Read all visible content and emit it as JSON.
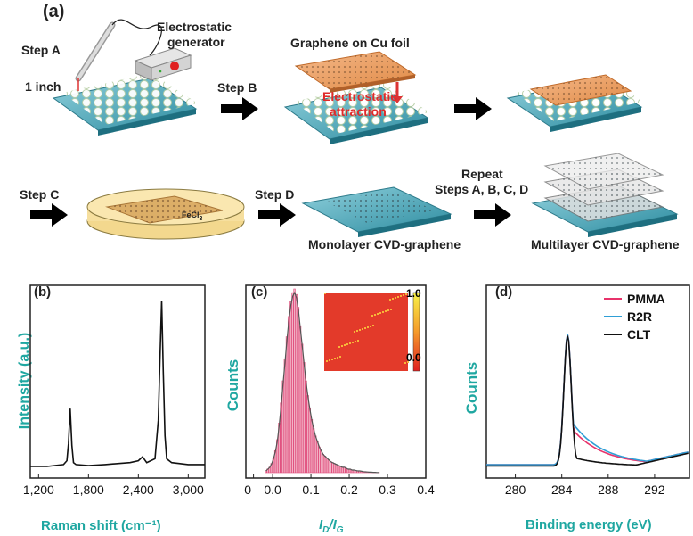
{
  "panel_a": {
    "label": "(a)",
    "step_a": "Step A",
    "step_b": "Step B",
    "step_c": "Step C",
    "step_d": "Step D",
    "generator": [
      "Electrostatic",
      "generator"
    ],
    "one_inch": "1 inch",
    "graphene_on_cu": "Graphene on Cu foil",
    "attraction": [
      "Electrostatic",
      "attraction"
    ],
    "fecl3": "FeCl",
    "fecl3_sub": "3",
    "repeat": [
      "Repeat",
      "Steps A, B, C, D"
    ],
    "monolayer": "Monolayer CVD-graphene",
    "multilayer": "Multilayer CVD-graphene"
  },
  "chart_data": [
    {
      "type": "line",
      "panel": "(b)",
      "xlabel": "Raman shift (cm⁻¹)",
      "ylabel": "Intensity (a.u.)",
      "xticks": [
        "1,200",
        "1,800",
        "2,400",
        "3,000"
      ],
      "xlim": [
        1100,
        3200
      ],
      "series": [
        {
          "values_x": [
            1100,
            1300,
            1500,
            1540,
            1560,
            1580,
            1600,
            1620,
            1650,
            1800,
            2000,
            2300,
            2400,
            2450,
            2500,
            2600,
            2640,
            2660,
            2680,
            2700,
            2720,
            2740,
            2800,
            3000,
            3200
          ],
          "values_y": [
            0.06,
            0.06,
            0.07,
            0.09,
            0.18,
            0.36,
            0.17,
            0.08,
            0.07,
            0.065,
            0.07,
            0.08,
            0.09,
            0.11,
            0.08,
            0.1,
            0.3,
            0.62,
            0.92,
            0.55,
            0.22,
            0.1,
            0.08,
            0.07,
            0.07
          ]
        }
      ]
    },
    {
      "type": "bar",
      "panel": "(c)",
      "xlabel_main": "I",
      "xlabel_sub1": "D",
      "xlabel_sep": "/",
      "xlabel_sub2": "G",
      "ylabel": "Counts",
      "xticks": [
        "0",
        "0.0",
        "0.1",
        "0.2",
        "0.3",
        "0.4"
      ],
      "xlim": [
        -0.07,
        0.4
      ],
      "colorbar": {
        "max": "1.0",
        "min": "0.0"
      },
      "bins_start": -0.02,
      "bin_width": 0.005,
      "values": [
        0.01,
        0.02,
        0.03,
        0.05,
        0.08,
        0.12,
        0.18,
        0.27,
        0.38,
        0.5,
        0.62,
        0.74,
        0.85,
        0.93,
        0.98,
        1.0,
        0.97,
        0.9,
        0.8,
        0.7,
        0.6,
        0.5,
        0.42,
        0.35,
        0.29,
        0.24,
        0.2,
        0.17,
        0.14,
        0.12,
        0.1,
        0.09,
        0.08,
        0.07,
        0.06,
        0.055,
        0.05,
        0.045,
        0.04,
        0.035,
        0.03,
        0.03,
        0.025,
        0.02,
        0.02,
        0.015,
        0.015,
        0.012,
        0.01,
        0.01,
        0.008,
        0.006,
        0.005,
        0.004,
        0.003,
        0.003,
        0.002,
        0.002,
        0.001,
        0.001
      ]
    },
    {
      "type": "line",
      "panel": "(d)",
      "xlabel": "Binding energy (eV)",
      "ylabel": "Counts",
      "xticks": [
        "280",
        "284",
        "288",
        "292"
      ],
      "xlim": [
        277.5,
        295
      ],
      "series": [
        {
          "name": "PMMA",
          "color": "#e8336b"
        },
        {
          "name": "R2R",
          "color": "#2f9fd6"
        },
        {
          "name": "CLT",
          "color": "#111111"
        }
      ]
    }
  ]
}
